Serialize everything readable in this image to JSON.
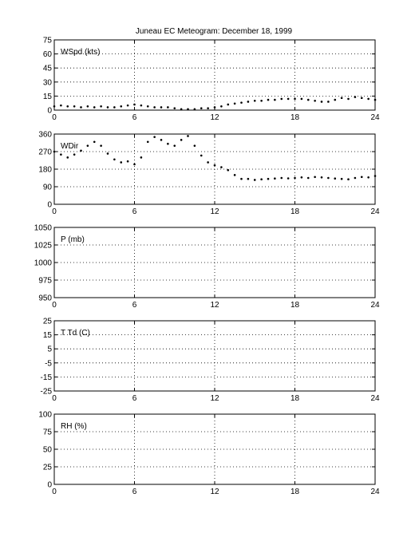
{
  "title": "Juneau EC Meteogram:   December 18, 1999",
  "chart_data": [
    {
      "id": "wspd",
      "type": "scatter",
      "label": "WSpd (kts)",
      "xlim": [
        0,
        24
      ],
      "ylim": [
        0,
        75
      ],
      "xticks": [
        0,
        6,
        12,
        18,
        24
      ],
      "yticks": [
        0,
        15,
        30,
        45,
        60,
        75
      ],
      "grid": true,
      "x": [
        0,
        0.5,
        1,
        1.5,
        2,
        2.5,
        3,
        3.5,
        4,
        4.5,
        5,
        5.5,
        6,
        6.5,
        7,
        7.5,
        8,
        8.5,
        9,
        9.5,
        10,
        10.5,
        11,
        11.5,
        12,
        12.5,
        13,
        13.5,
        14,
        14.5,
        15,
        15.5,
        16,
        16.5,
        17,
        17.5,
        18,
        18.5,
        19,
        19.5,
        20,
        20.5,
        21,
        21.5,
        22,
        22.5,
        23,
        23.5,
        24
      ],
      "y": [
        4,
        5,
        4,
        4,
        3,
        4,
        3,
        4,
        3,
        3,
        4,
        5,
        6,
        5,
        4,
        3,
        3,
        3,
        2,
        1,
        1,
        1,
        2,
        2,
        3,
        4,
        6,
        7,
        8,
        9,
        10,
        10,
        11,
        11,
        12,
        12,
        12,
        12,
        11,
        10,
        9,
        9,
        11,
        13,
        12,
        14,
        13,
        12,
        11
      ]
    },
    {
      "id": "wdir",
      "type": "scatter",
      "label": "WDir",
      "xlim": [
        0,
        24
      ],
      "ylim": [
        0,
        360
      ],
      "xticks": [
        0,
        6,
        12,
        18,
        24
      ],
      "yticks": [
        0,
        90,
        180,
        270,
        360
      ],
      "grid": true,
      "x": [
        0,
        0.5,
        1,
        1.5,
        2,
        2.5,
        3,
        3.5,
        4,
        4.5,
        5,
        5.5,
        6,
        6.5,
        7,
        7.5,
        8,
        8.5,
        9,
        9.5,
        10,
        10.5,
        11,
        11.5,
        12,
        12.5,
        13,
        13.5,
        14,
        14.5,
        15,
        15.5,
        16,
        16.5,
        17,
        17.5,
        18,
        18.5,
        19,
        19.5,
        20,
        20.5,
        21,
        21.5,
        22,
        22.5,
        23,
        23.5,
        24
      ],
      "y": [
        270,
        255,
        240,
        255,
        275,
        300,
        320,
        300,
        260,
        230,
        215,
        220,
        205,
        240,
        320,
        345,
        330,
        310,
        300,
        330,
        350,
        300,
        250,
        215,
        200,
        190,
        175,
        150,
        130,
        130,
        125,
        128,
        130,
        132,
        135,
        133,
        135,
        138,
        135,
        140,
        138,
        135,
        132,
        130,
        128,
        135,
        140,
        138,
        145
      ]
    },
    {
      "id": "pres",
      "type": "line",
      "label": "P (mb)",
      "xlim": [
        0,
        24
      ],
      "ylim": [
        950,
        1050
      ],
      "xticks": [
        0,
        6,
        12,
        18,
        24
      ],
      "yticks": [
        950,
        975,
        1000,
        1025,
        1050
      ],
      "grid": true,
      "x": [],
      "y": []
    },
    {
      "id": "temp",
      "type": "line",
      "label": "T Td (C)",
      "xlim": [
        0,
        24
      ],
      "ylim": [
        -25,
        25
      ],
      "xticks": [
        0,
        6,
        12,
        18,
        24
      ],
      "yticks": [
        -25,
        -15,
        -5,
        5,
        15,
        25
      ],
      "grid": true,
      "x": [],
      "y": []
    },
    {
      "id": "rh",
      "type": "line",
      "label": "RH (%)",
      "xlim": [
        0,
        24
      ],
      "ylim": [
        0,
        100
      ],
      "xticks": [
        0,
        6,
        12,
        18,
        24
      ],
      "yticks": [
        0,
        25,
        50,
        75,
        100
      ],
      "grid": true,
      "x": [],
      "y": []
    }
  ]
}
